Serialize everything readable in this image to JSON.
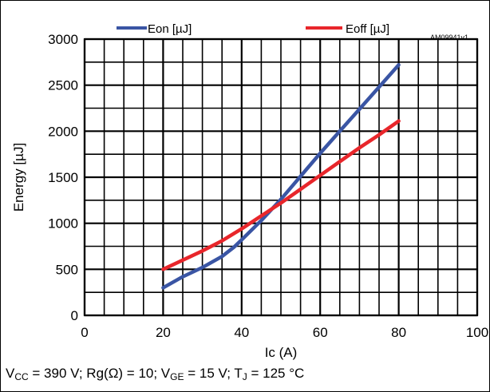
{
  "chart_data": {
    "type": "line",
    "figure_id": "AM09941v1",
    "xlabel": "Ic (A)",
    "ylabel": "Energy [µJ]",
    "xlim": [
      0,
      100
    ],
    "ylim": [
      0,
      3000
    ],
    "x_ticks": [
      "0",
      "20",
      "40",
      "60",
      "80",
      "100"
    ],
    "y_ticks": [
      "0",
      "500",
      "1000",
      "1500",
      "2000",
      "2500",
      "3000"
    ],
    "grid": true,
    "legend_position": "top",
    "series": [
      {
        "name": "Eon [µJ]",
        "color": "#3a55a4",
        "x": [
          20,
          25,
          30,
          35,
          38,
          40,
          45,
          50,
          55,
          60,
          65,
          70,
          75,
          80
        ],
        "y": [
          300,
          420,
          520,
          640,
          740,
          820,
          1030,
          1260,
          1510,
          1760,
          2000,
          2240,
          2480,
          2720
        ]
      },
      {
        "name": "Eoff [µJ]",
        "color": "#e8262b",
        "x": [
          20,
          25,
          30,
          35,
          40,
          45,
          50,
          55,
          60,
          65,
          70,
          75,
          80
        ],
        "y": [
          500,
          600,
          700,
          810,
          940,
          1080,
          1220,
          1370,
          1520,
          1670,
          1820,
          1960,
          2110
        ]
      }
    ]
  },
  "conditions": {
    "vcc_symbol": "V",
    "vcc_sub": "CC",
    "vcc_value": " = 390 V; Rg(Ω) = 10; ",
    "vge_symbol": "V",
    "vge_sub": "GE",
    "vge_value": " = 15 V; ",
    "tj_symbol": "T",
    "tj_sub": "J",
    "tj_value": " = 125 °C"
  }
}
